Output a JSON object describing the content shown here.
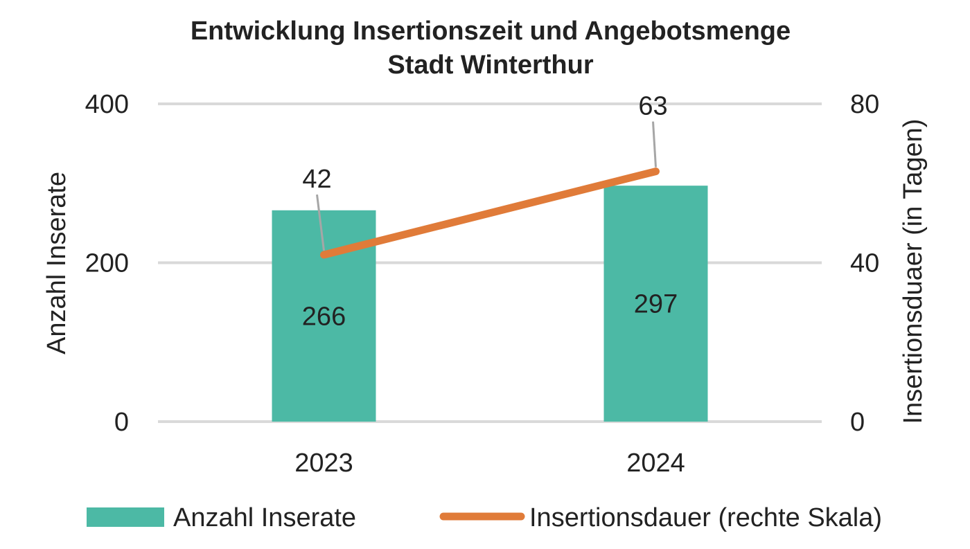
{
  "chart_data": {
    "type": "bar",
    "title": "Entwicklung Insertionszeit und Angebotsmenge",
    "subtitle": "Stadt Winterthur",
    "categories": [
      "2023",
      "2024"
    ],
    "ylabel": "Anzahl Inserate",
    "y2label": "Insertionsduaer (in Tagen)",
    "ylim": [
      0,
      400
    ],
    "y2lim": [
      0,
      80
    ],
    "yticks": [
      "0",
      "200",
      "400"
    ],
    "y2ticks": [
      "0",
      "40",
      "80"
    ],
    "grid": true,
    "legend_position": "bottom",
    "series": [
      {
        "name": "Anzahl Inserate",
        "kind": "bar",
        "axis": "left",
        "color": "#4cb9a5",
        "values": [
          266,
          297
        ],
        "labels": [
          "266",
          "297"
        ]
      },
      {
        "name": "Insertionsdauer (rechte Skala)",
        "kind": "line",
        "axis": "right",
        "color": "#e07b39",
        "values": [
          42,
          63
        ],
        "labels": [
          "42",
          "63"
        ]
      }
    ]
  }
}
